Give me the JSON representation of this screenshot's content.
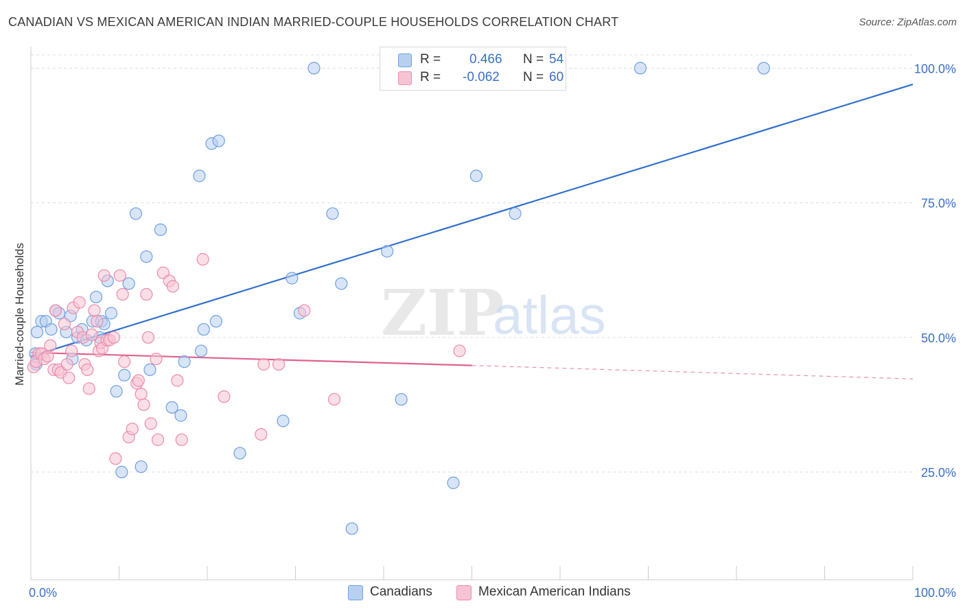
{
  "title": "CANADIAN VS MEXICAN AMERICAN INDIAN MARRIED-COUPLE HOUSEHOLDS CORRELATION CHART",
  "source": "Source: ZipAtlas.com",
  "watermark": {
    "zip": "ZIP",
    "atlas": "atlas"
  },
  "legend": {
    "canadians": {
      "r_label": "R =",
      "r_value": "0.466",
      "n_label": "N =",
      "n_value": "54"
    },
    "mexican": {
      "r_label": "R =",
      "r_value": "-0.062",
      "n_label": "N =",
      "n_value": "60"
    }
  },
  "colors": {
    "blue_fill": "#b8d0f0",
    "blue_stroke": "#6f9fe0",
    "blue_line": "#2f6fcc",
    "pink_fill": "#f8c4d4",
    "pink_stroke": "#eb8aab",
    "pink_line": "#e06090",
    "grid": "#dddddd",
    "tick_label": "#3a6fc4"
  },
  "chart_data": {
    "type": "scatter",
    "title": "CANADIAN VS MEXICAN AMERICAN INDIAN MARRIED-COUPLE HOUSEHOLDS CORRELATION CHART",
    "xlabel": "",
    "ylabel": "Married-couple Households",
    "xlim": [
      0,
      100
    ],
    "ylim": [
      5,
      104
    ],
    "x_tick_labels": [
      "0.0%",
      "100.0%"
    ],
    "y_ticks": [
      25,
      50,
      75,
      100
    ],
    "y_tick_labels": [
      "25.0%",
      "50.0%",
      "75.0%",
      "100.0%"
    ],
    "grid": true,
    "series": [
      {
        "name": "Canadians",
        "points": [
          [
            0.5,
            47
          ],
          [
            0.6,
            45
          ],
          [
            0.7,
            51
          ],
          [
            1.2,
            53
          ],
          [
            1.7,
            53
          ],
          [
            2.3,
            51.5
          ],
          [
            2.8,
            55
          ],
          [
            3.2,
            54.5
          ],
          [
            4.0,
            51
          ],
          [
            4.5,
            54
          ],
          [
            4.7,
            46
          ],
          [
            5.3,
            50
          ],
          [
            5.8,
            51.5
          ],
          [
            6.3,
            49.5
          ],
          [
            7.0,
            53
          ],
          [
            7.4,
            57.5
          ],
          [
            7.8,
            50
          ],
          [
            8.0,
            53
          ],
          [
            8.3,
            52.5
          ],
          [
            8.7,
            60.5
          ],
          [
            9.1,
            54.5
          ],
          [
            9.7,
            40
          ],
          [
            10.3,
            25
          ],
          [
            10.6,
            43
          ],
          [
            11.1,
            60
          ],
          [
            11.9,
            73
          ],
          [
            12.5,
            26
          ],
          [
            13.1,
            65
          ],
          [
            13.5,
            44
          ],
          [
            14.7,
            70
          ],
          [
            16.0,
            37
          ],
          [
            17.0,
            35.5
          ],
          [
            17.4,
            45.5
          ],
          [
            19.1,
            80
          ],
          [
            19.3,
            47.5
          ],
          [
            19.6,
            51.5
          ],
          [
            20.5,
            86
          ],
          [
            21.0,
            53
          ],
          [
            21.3,
            86.5
          ],
          [
            23.7,
            28.5
          ],
          [
            28.6,
            34.5
          ],
          [
            29.6,
            61
          ],
          [
            30.5,
            54.5
          ],
          [
            32.1,
            100
          ],
          [
            34.2,
            73
          ],
          [
            35.2,
            60
          ],
          [
            36.4,
            14.5
          ],
          [
            40.4,
            66
          ],
          [
            42.0,
            38.5
          ],
          [
            47.9,
            23
          ],
          [
            50.5,
            80
          ],
          [
            54.9,
            73
          ],
          [
            69.1,
            100
          ],
          [
            83.1,
            100
          ]
        ],
        "trend": {
          "x": [
            0,
            100
          ],
          "y": [
            46.5,
            97
          ]
        }
      },
      {
        "name": "Mexican American Indians",
        "points": [
          [
            0.3,
            44.5
          ],
          [
            0.6,
            45.5
          ],
          [
            0.9,
            47
          ],
          [
            1.2,
            47
          ],
          [
            1.5,
            46
          ],
          [
            1.9,
            46.5
          ],
          [
            2.2,
            48.5
          ],
          [
            2.6,
            44
          ],
          [
            2.8,
            55
          ],
          [
            3.1,
            44
          ],
          [
            3.4,
            43.5
          ],
          [
            3.8,
            52.5
          ],
          [
            4.1,
            45
          ],
          [
            4.3,
            42.5
          ],
          [
            4.6,
            47.5
          ],
          [
            4.8,
            55.5
          ],
          [
            5.3,
            51
          ],
          [
            5.5,
            56.5
          ],
          [
            5.9,
            50
          ],
          [
            6.1,
            45
          ],
          [
            6.4,
            44
          ],
          [
            6.6,
            40.5
          ],
          [
            6.9,
            50.5
          ],
          [
            7.2,
            55
          ],
          [
            7.5,
            53
          ],
          [
            7.7,
            47.5
          ],
          [
            7.9,
            49
          ],
          [
            8.1,
            48
          ],
          [
            8.3,
            61.5
          ],
          [
            8.6,
            49.5
          ],
          [
            8.9,
            49.5
          ],
          [
            9.4,
            50
          ],
          [
            9.6,
            27.5
          ],
          [
            10.1,
            61.5
          ],
          [
            10.4,
            58
          ],
          [
            10.6,
            45.5
          ],
          [
            11.1,
            31.5
          ],
          [
            11.5,
            33
          ],
          [
            12.0,
            41.5
          ],
          [
            12.2,
            42
          ],
          [
            12.5,
            39.5
          ],
          [
            12.8,
            37.5
          ],
          [
            13.1,
            58
          ],
          [
            13.3,
            50
          ],
          [
            13.6,
            34
          ],
          [
            14.2,
            46
          ],
          [
            14.4,
            31
          ],
          [
            15.0,
            62
          ],
          [
            15.7,
            60.5
          ],
          [
            16.1,
            59.5
          ],
          [
            16.6,
            42
          ],
          [
            17.1,
            31
          ],
          [
            19.5,
            64.5
          ],
          [
            21.9,
            39
          ],
          [
            26.1,
            32
          ],
          [
            26.4,
            45
          ],
          [
            28.1,
            45
          ],
          [
            31.0,
            55
          ],
          [
            34.4,
            38.5
          ],
          [
            48.6,
            47.5
          ]
        ],
        "trend_solid": {
          "x": [
            0,
            50
          ],
          "y": [
            47.2,
            44.8
          ]
        },
        "trend_dashed": {
          "x": [
            50,
            100
          ],
          "y": [
            44.8,
            42.3
          ]
        }
      }
    ]
  },
  "bottom_legend": {
    "canadians": "Canadians",
    "mexican": "Mexican American Indians"
  }
}
